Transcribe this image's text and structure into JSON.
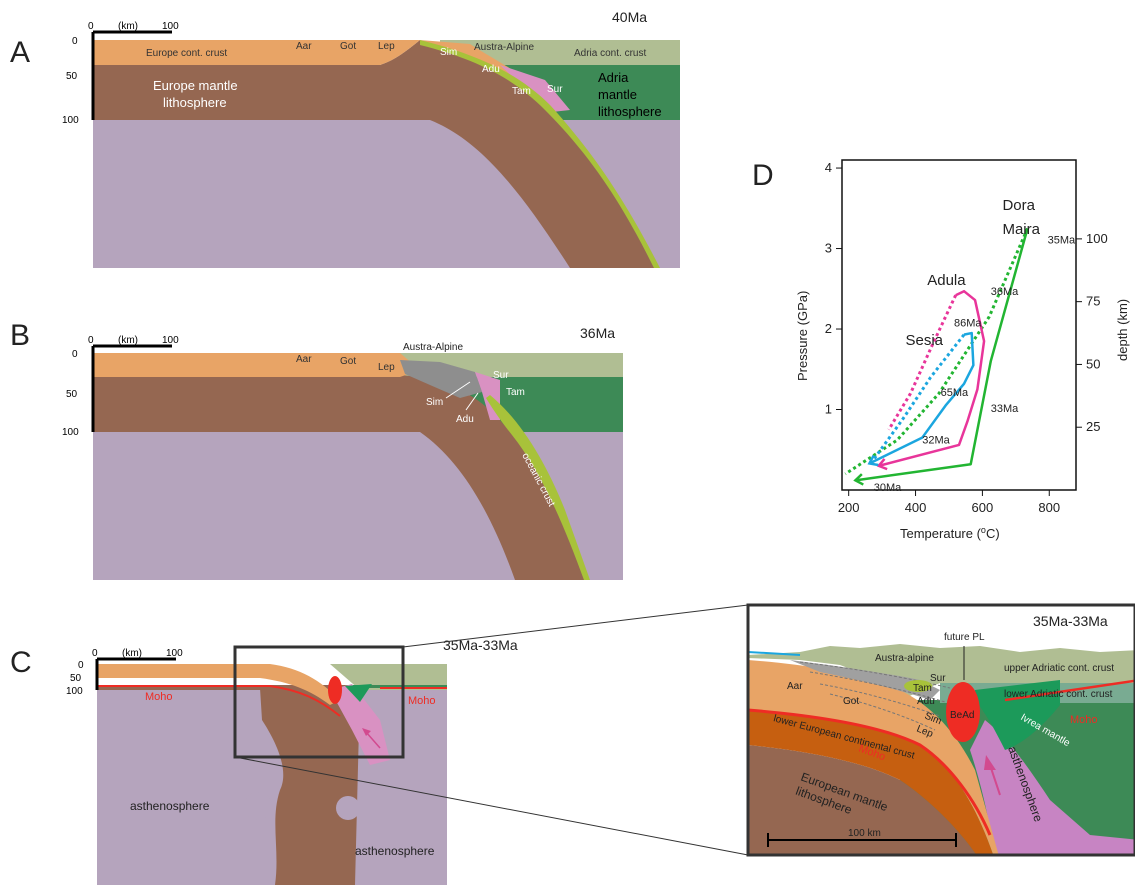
{
  "panel_a": {
    "letter": "A",
    "age": "40Ma",
    "scale_zero": "0",
    "scale_unit": "(km)",
    "scale_end": "100",
    "depth_ticks": [
      "0",
      "50",
      "100"
    ],
    "labels": {
      "europe_crust": "Europe cont. crust",
      "aar": "Aar",
      "got": "Got",
      "lep": "Lep",
      "sim": "Sim",
      "austro_alpine": "Austra-Alpine",
      "adria_crust": "Adria cont. crust",
      "adu": "Adu",
      "tam": "Tam",
      "sur": "Sur",
      "europe_mantle": "Europe mantle\nlithosphere",
      "adria_mantle": "Adria\nmantle\nlithosphere"
    }
  },
  "panel_b": {
    "letter": "B",
    "age": "36Ma",
    "scale_zero": "0",
    "scale_unit": "(km)",
    "scale_end": "100",
    "depth_ticks": [
      "0",
      "50",
      "100"
    ],
    "labels": {
      "austro_alpine": "Austra-Alpine",
      "aar": "Aar",
      "got": "Got",
      "lep": "Lep",
      "sur": "Sur",
      "tam": "Tam",
      "sim": "Sim",
      "adu": "Adu",
      "oceanic": "oceanic crust"
    }
  },
  "panel_c": {
    "letter": "C",
    "age": "35Ma-33Ma",
    "scale_zero": "0",
    "scale_unit": "(km)",
    "scale_end": "100",
    "depth_ticks": [
      "0",
      "50",
      "100"
    ],
    "labels": {
      "moho_left": "Moho",
      "moho_right": "Moho",
      "astheno_1": "asthenosphere",
      "astheno_2": "asthenosphere"
    }
  },
  "inset": {
    "age": "35Ma-33Ma",
    "labels": {
      "future_pl": "future PL",
      "austro_alpine": "Austra-alpine",
      "upper_adriatic": "upper Adriatic cont. crust",
      "lower_adriatic": "lower Adriatic cont. crust",
      "aar": "Aar",
      "got": "Got",
      "sur": "Sur",
      "tam": "Tam",
      "adu": "Adu",
      "sim": "Sim",
      "lep": "Lep",
      "bead": "BeAd",
      "ivrea": "Ivrea mantle",
      "moho_right": "Moho",
      "lower_european": "lower European continental crust",
      "moho_left": "Moho",
      "european_mantle": "European mantle\nlithosphere",
      "asthenosphere": "asthenosphere",
      "scale": "100 km"
    }
  },
  "panel_d": {
    "letter": "D",
    "chart_data": {
      "type": "line",
      "xlabel": "Temperature (oC)",
      "ylabel": "Pressure (GPa)",
      "y2label": "depth (km)",
      "xlim": [
        180,
        880
      ],
      "ylim": [
        0,
        4.1
      ],
      "x_ticks": [
        200,
        400,
        600,
        800
      ],
      "y_ticks": [
        1,
        2,
        3,
        4
      ],
      "y2_ticks": [
        "25",
        "50",
        "75",
        "100"
      ],
      "y2_tick_pressures": [
        0.78,
        1.56,
        2.34,
        3.12
      ],
      "colors": {
        "dora_maira": "#22b532",
        "adula": "#e8359a",
        "sesia": "#1ba6df"
      },
      "series": [
        {
          "name": "Dora Maira",
          "solid": [
            [
              735,
              3.25
            ],
            [
              625,
              1.6
            ],
            [
              565,
              0.32
            ],
            [
              220,
              0.12
            ]
          ],
          "dashed": [
            [
              735,
              3.25
            ],
            [
              620,
              2.15
            ],
            [
              470,
              1.2
            ],
            [
              345,
              0.62
            ],
            [
              190,
              0.2
            ]
          ]
        },
        {
          "name": "Adula",
          "solid": [
            [
              520,
              2.42
            ],
            [
              545,
              2.47
            ],
            [
              578,
              2.36
            ],
            [
              605,
              1.85
            ],
            [
              585,
              1.25
            ],
            [
              555,
              0.85
            ],
            [
              530,
              0.56
            ],
            [
              290,
              0.3
            ]
          ],
          "dashed": [
            [
              520,
              2.42
            ],
            [
              450,
              1.8
            ],
            [
              385,
              1.2
            ],
            [
              320,
              0.75
            ]
          ]
        },
        {
          "name": "Sesia",
          "solid": [
            [
              545,
              1.93
            ],
            [
              568,
              1.95
            ],
            [
              573,
              1.55
            ],
            [
              545,
              1.32
            ],
            [
              490,
              1.05
            ],
            [
              420,
              0.65
            ],
            [
              262,
              0.33
            ]
          ],
          "dashed": [
            [
              545,
              1.93
            ],
            [
              445,
              1.4
            ],
            [
              365,
              0.9
            ],
            [
              275,
              0.38
            ]
          ]
        }
      ],
      "annotations": [
        {
          "text": "Dora",
          "x": 660,
          "y": 3.48
        },
        {
          "text": "Maira",
          "x": 660,
          "y": 3.18
        },
        {
          "text": "35Ma",
          "x": 795,
          "y": 3.06
        },
        {
          "text": "Adula",
          "x": 435,
          "y": 2.55
        },
        {
          "text": "36Ma",
          "x": 625,
          "y": 2.42
        },
        {
          "text": "86Ma",
          "x": 515,
          "y": 2.03
        },
        {
          "text": "Sesia",
          "x": 370,
          "y": 1.8
        },
        {
          "text": "65Ma",
          "x": 475,
          "y": 1.17
        },
        {
          "text": "33Ma",
          "x": 625,
          "y": 0.97
        },
        {
          "text": "32Ma",
          "x": 420,
          "y": 0.58
        },
        {
          "text": "30Ma",
          "x": 275,
          "y": -0.01
        }
      ]
    }
  }
}
